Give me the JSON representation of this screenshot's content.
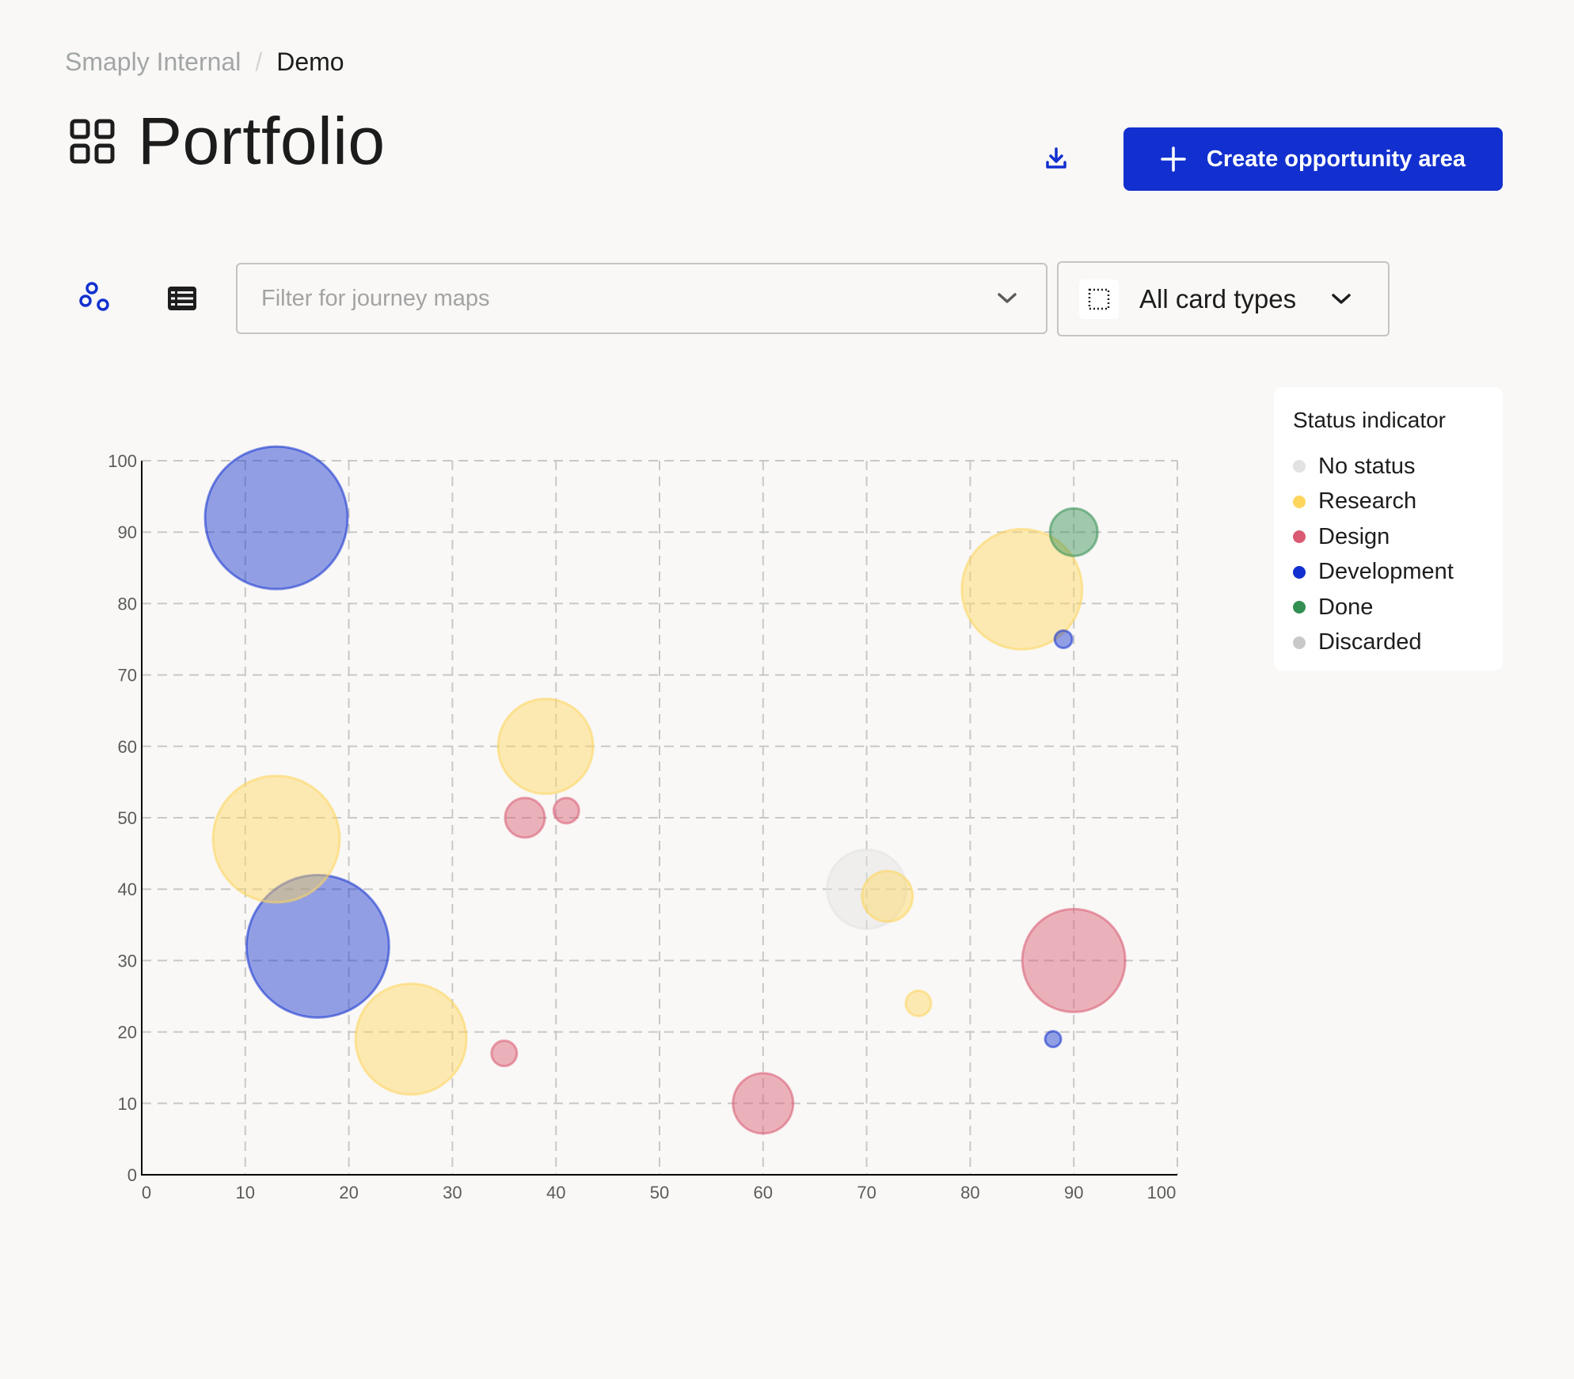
{
  "breadcrumb": {
    "parent": "Smaply Internal",
    "separator": "/",
    "current": "Demo"
  },
  "header": {
    "title": "Portfolio",
    "title_icon": "grid-icon",
    "download_icon": "download-icon",
    "create_button_label": "Create opportunity area",
    "create_button_icon": "plus-icon",
    "accent_color": "#1230cf"
  },
  "toolbar": {
    "view_bubble_icon": "bubble-chart-icon",
    "view_list_icon": "table-list-icon",
    "filter_placeholder": "Filter for journey maps",
    "card_type_label": "All card types",
    "card_type_icon": "dotted-square-icon"
  },
  "legend": {
    "title": "Status indicator",
    "items": [
      {
        "label": "No status",
        "color": "#e2e2e2"
      },
      {
        "label": "Research",
        "color": "#fed65e"
      },
      {
        "label": "Design",
        "color": "#d95a72"
      },
      {
        "label": "Development",
        "color": "#1230cf"
      },
      {
        "label": "Done",
        "color": "#338e52"
      },
      {
        "label": "Discarded",
        "color": "#c9c9c9"
      }
    ]
  },
  "chart_data": {
    "type": "scatter",
    "subtype": "bubble",
    "title": "",
    "xlabel": "",
    "ylabel": "",
    "xlim": [
      0,
      100
    ],
    "ylim": [
      0,
      100
    ],
    "x_ticks": [
      0,
      10,
      20,
      30,
      40,
      50,
      60,
      70,
      80,
      90,
      100
    ],
    "y_ticks": [
      0,
      10,
      20,
      30,
      40,
      50,
      60,
      70,
      80,
      90,
      100
    ],
    "grid": true,
    "legend_position": "right",
    "series": [
      {
        "name": "No status",
        "color": "#e2e2e2",
        "points": [
          {
            "x": 70,
            "y": 40,
            "r": 50
          }
        ]
      },
      {
        "name": "Research",
        "color": "#fed65e",
        "points": [
          {
            "x": 13,
            "y": 47,
            "r": 80
          },
          {
            "x": 26,
            "y": 19,
            "r": 70
          },
          {
            "x": 39,
            "y": 60,
            "r": 60
          },
          {
            "x": 72,
            "y": 39,
            "r": 32
          },
          {
            "x": 75,
            "y": 24,
            "r": 16
          },
          {
            "x": 85,
            "y": 82,
            "r": 76
          }
        ]
      },
      {
        "name": "Design",
        "color": "#d95a72",
        "points": [
          {
            "x": 35,
            "y": 17,
            "r": 16
          },
          {
            "x": 37,
            "y": 50,
            "r": 25
          },
          {
            "x": 41,
            "y": 51,
            "r": 16
          },
          {
            "x": 60,
            "y": 10,
            "r": 38
          },
          {
            "x": 90,
            "y": 30,
            "r": 65
          }
        ]
      },
      {
        "name": "Development",
        "color": "#1230cf",
        "points": [
          {
            "x": 13,
            "y": 92,
            "r": 90
          },
          {
            "x": 17,
            "y": 32,
            "r": 90
          },
          {
            "x": 88,
            "y": 19,
            "r": 10
          },
          {
            "x": 89,
            "y": 75,
            "r": 11
          }
        ]
      },
      {
        "name": "Done",
        "color": "#338e52",
        "points": [
          {
            "x": 90,
            "y": 90,
            "r": 30
          }
        ]
      },
      {
        "name": "Discarded",
        "color": "#c9c9c9",
        "points": []
      }
    ]
  }
}
